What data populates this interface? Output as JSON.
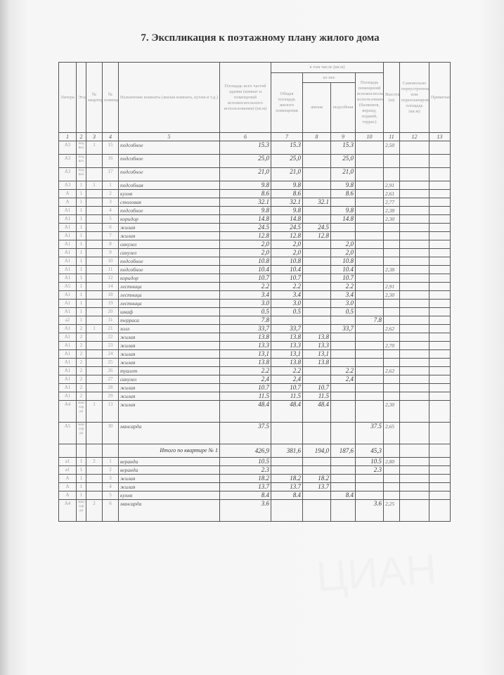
{
  "title": "7. Экспликация к поэтажному плану жилого дома",
  "header": {
    "litera": "Литера",
    "floor": "Этаж",
    "apt": "№ квартиры",
    "room": "№ помещения",
    "purpose": "Назначение комнаты (жилая комната, кухня и т.д.)",
    "total_area": "Площадь всех частей здания (комнат и помещений вспомогательного использования) (кв.м)",
    "incl": "в том числе (кв.м)",
    "living_total": "Общая площадь жилого помещения",
    "of_it": "из нее",
    "living": "жилая",
    "auxiliary": "подсобная",
    "aux_area": "Площадь помещений вспомогательного использования (балконов, веранд, лоджий, террас)",
    "height": "Высота (м)",
    "unauthorized": "Самовольно переустроенная или перепланированная площадь (кв.м)",
    "note": "Примечание",
    "numbers": [
      "1",
      "2",
      "3",
      "4",
      "5",
      "6",
      "7",
      "8",
      "9",
      "10",
      "11",
      "12",
      "13"
    ]
  },
  "rows": [
    {
      "t": 3,
      "c": [
        "A3",
        "подвал",
        "1",
        "15",
        "подсобное",
        "15.3",
        "15.3",
        "",
        "15.3",
        "",
        "2,50",
        "",
        ""
      ]
    },
    {
      "t": 3,
      "c": [
        "A3",
        "подвал",
        "",
        "16",
        "подсобное",
        "25,0",
        "25,0",
        "",
        "25,0",
        "",
        "",
        "",
        ""
      ]
    },
    {
      "t": 3,
      "c": [
        "A3",
        "подвал",
        "",
        "17",
        "подсобное",
        "21,0",
        "21,0",
        "",
        "21,0",
        "",
        "",
        "",
        ""
      ]
    },
    {
      "c": [
        "A3",
        "1",
        "1",
        "1",
        "подсобная",
        "9.8",
        "9.8",
        "",
        "9.8",
        "",
        "2,91",
        "",
        ""
      ]
    },
    {
      "c": [
        "A",
        "1",
        "",
        "2",
        "кухня",
        "8.6",
        "8.6",
        "",
        "8.6",
        "",
        "2,61",
        "",
        ""
      ]
    },
    {
      "c": [
        "A",
        "1",
        "",
        "3",
        "столовая",
        "32.1",
        "32.1",
        "32.1",
        "",
        "",
        "2,77",
        "",
        ""
      ]
    },
    {
      "c": [
        "A1",
        "1",
        "",
        "4",
        "подсобное",
        "9.8",
        "9.8",
        "",
        "9.8",
        "",
        "2,38",
        "",
        ""
      ]
    },
    {
      "c": [
        "A1",
        "1",
        "",
        "5",
        "коридор",
        "14.8",
        "14.8",
        "",
        "14.8",
        "",
        "2,30",
        "",
        ""
      ]
    },
    {
      "c": [
        "A1",
        "1",
        "",
        "6",
        "жилая",
        "24.5",
        "24.5",
        "24.5",
        "",
        "",
        "",
        "",
        ""
      ]
    },
    {
      "c": [
        "A1",
        "1",
        "",
        "7",
        "жилая",
        "12.8",
        "12.8",
        "12.8",
        "",
        "",
        "",
        "",
        ""
      ]
    },
    {
      "c": [
        "A1",
        "1",
        "",
        "8",
        "санузел",
        "2,0",
        "2,0",
        "",
        "2,0",
        "",
        "",
        "",
        ""
      ]
    },
    {
      "c": [
        "A1",
        "1",
        "",
        "9",
        "санузел",
        "2,0",
        "2,0",
        "",
        "2,0",
        "",
        "",
        "",
        ""
      ]
    },
    {
      "c": [
        "A1",
        "1",
        "",
        "10",
        "подсобное",
        "10.8",
        "10.8",
        "",
        "10.8",
        "",
        "",
        "",
        ""
      ]
    },
    {
      "c": [
        "A1",
        "1",
        "",
        "11",
        "подсобное",
        "10.4",
        "10.4",
        "",
        "10.4",
        "",
        "2,38",
        "",
        ""
      ]
    },
    {
      "c": [
        "A1",
        "1",
        "",
        "12",
        "коридор",
        "10.7",
        "10.7",
        "",
        "10.7",
        "",
        "",
        "",
        ""
      ]
    },
    {
      "c": [
        "A5",
        "1",
        "",
        "14",
        "лестница",
        "2.2",
        "2.2",
        "",
        "2.2",
        "",
        "2,91",
        "",
        ""
      ]
    },
    {
      "c": [
        "A1",
        "1",
        "",
        "18",
        "лестница",
        "3.4",
        "3.4",
        "",
        "3.4",
        "",
        "2,30",
        "",
        ""
      ]
    },
    {
      "c": [
        "A1",
        "1",
        "",
        "19",
        "лестница",
        "3.0",
        "3.0",
        "",
        "3.0",
        "",
        "",
        "",
        ""
      ]
    },
    {
      "c": [
        "A1",
        "1",
        "",
        "20",
        "шкаф",
        "0.5",
        "0.5",
        "",
        "0.5",
        "",
        "",
        "",
        ""
      ]
    },
    {
      "c": [
        "a2",
        "1",
        "",
        "31",
        "терраса",
        "7.8",
        "",
        "",
        "",
        "7.8",
        "",
        "",
        ""
      ]
    },
    {
      "c": [
        "A1",
        "2",
        "1",
        "21",
        "холл",
        "33,7",
        "33,7",
        "",
        "33,7",
        "",
        "2,62",
        "",
        ""
      ]
    },
    {
      "c": [
        "A1",
        "2",
        "",
        "22",
        "жилая",
        "13.8",
        "13.8",
        "13.8",
        "",
        "",
        "",
        "",
        ""
      ]
    },
    {
      "c": [
        "A1",
        "2",
        "",
        "23",
        "жилая",
        "13.3",
        "13.3",
        "13.3",
        "",
        "",
        "2,70",
        "",
        ""
      ]
    },
    {
      "c": [
        "A1",
        "2",
        "",
        "24",
        "жилая",
        "13,1",
        "13,1",
        "13,1",
        "",
        "",
        "",
        "",
        ""
      ]
    },
    {
      "c": [
        "A1",
        "2",
        "",
        "25",
        "жилая",
        "13.8",
        "13.8",
        "13.8",
        "",
        "",
        "",
        "",
        ""
      ]
    },
    {
      "c": [
        "A1",
        "2",
        "",
        "26",
        "туалет",
        "2.2",
        "2.2",
        "",
        "2.2",
        "",
        "2,62",
        "",
        ""
      ]
    },
    {
      "c": [
        "A1",
        "2",
        "",
        "27",
        "санузел",
        "2,4",
        "2,4",
        "",
        "2,4",
        "",
        "",
        "",
        ""
      ]
    },
    {
      "c": [
        "A1",
        "2",
        "",
        "28",
        "жилая",
        "10.7",
        "10.7",
        "10.7",
        "",
        "",
        "",
        "",
        ""
      ]
    },
    {
      "c": [
        "A1",
        "2",
        "",
        "29",
        "жилая",
        "11.5",
        "11.5",
        "11.5",
        "",
        "",
        "",
        "",
        ""
      ]
    },
    {
      "t": 5,
      "c": [
        "A4",
        "мансарда",
        "1",
        "13",
        "жилая",
        "48.4",
        "48.4",
        "48.4",
        "",
        "",
        "2,30",
        "",
        ""
      ]
    },
    {
      "t": 5,
      "c": [
        "A5",
        "мансарда",
        "",
        "30",
        "мансарда",
        "37.5",
        "",
        "",
        "",
        "37.5",
        "2,65",
        "",
        ""
      ]
    },
    {
      "total": true,
      "c": [
        "Итого по квартире № 1",
        "426,9",
        "381,6",
        "194,0",
        "187,6",
        "45,3",
        "",
        "",
        ""
      ]
    },
    {
      "c": [
        "a1",
        "1",
        "2",
        "1",
        "веранда",
        "10.5",
        "",
        "",
        "",
        "10.5",
        "2,80",
        "",
        ""
      ]
    },
    {
      "c": [
        "a1",
        "1",
        "",
        "2",
        "веранда",
        "2.3",
        "",
        "",
        "",
        "2.3",
        "",
        "",
        ""
      ]
    },
    {
      "c": [
        "A",
        "1",
        "",
        "3",
        "жилая",
        "18.2",
        "18.2",
        "18.2",
        "",
        "",
        "",
        "",
        ""
      ]
    },
    {
      "c": [
        "A",
        "1",
        "",
        "4",
        "жилая",
        "13.7",
        "13.7",
        "13.7",
        "",
        "",
        "",
        "",
        ""
      ]
    },
    {
      "c": [
        "A",
        "1",
        "",
        "5",
        "кухня",
        "8.4",
        "8.4",
        "",
        "8.4",
        "",
        "",
        "",
        ""
      ]
    },
    {
      "t": 5,
      "c": [
        "A4",
        "мансарда",
        "2",
        "6",
        "мансарда",
        "3.6",
        "",
        "",
        "",
        "3.6",
        "2,25",
        "",
        ""
      ]
    }
  ]
}
